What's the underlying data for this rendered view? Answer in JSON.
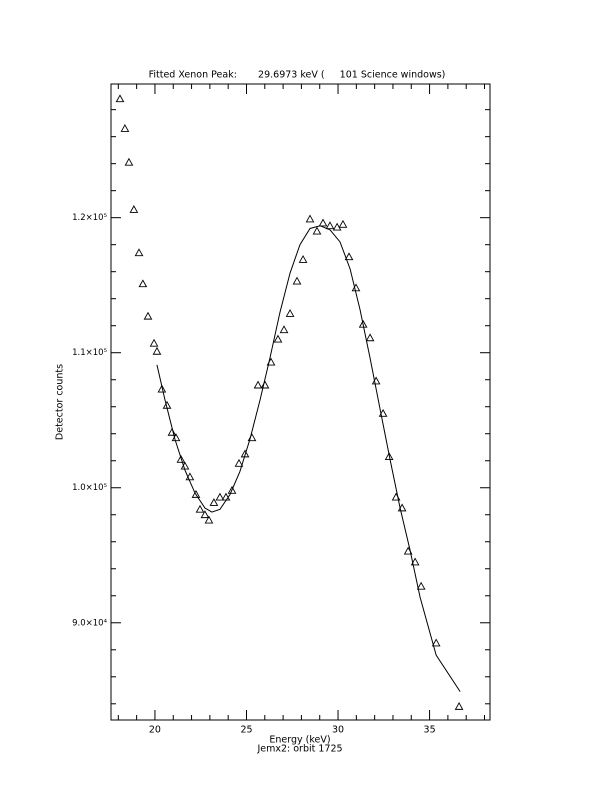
{
  "chart_data": {
    "type": "scatter",
    "title": "Fitted Xenon Peak:       29.6973 keV (     101 Science windows)",
    "x_label": "Energy (keV)",
    "x_label_2": "Jemx2: orbit 1725",
    "y_label": "Detector counts",
    "xlim": [
      17.6,
      38.3
    ],
    "ylim": [
      82800,
      129900
    ],
    "xticks": [
      20,
      25,
      30,
      35
    ],
    "xminorticks": [
      18,
      19,
      21,
      22,
      23,
      24,
      26,
      27,
      28,
      29,
      31,
      32,
      33,
      34,
      36,
      37,
      38
    ],
    "yticks": [
      {
        "value": 90000,
        "label": "9.0×10⁴"
      },
      {
        "value": 100000,
        "label": "1.0×10⁵"
      },
      {
        "value": 110000,
        "label": "1.1×10⁵"
      },
      {
        "value": 120000,
        "label": "1.2×10⁵"
      }
    ],
    "yminorticks": [
      84000,
      86000,
      88000,
      92000,
      94000,
      96000,
      98000,
      102000,
      104000,
      106000,
      108000,
      112000,
      114000,
      116000,
      118000,
      122000,
      124000,
      126000,
      128000
    ],
    "series": [
      {
        "mode": "markers",
        "color": "#000000",
        "x": [
          18.09,
          18.36,
          18.58,
          18.85,
          19.13,
          19.34,
          19.62,
          19.95,
          20.11,
          20.38,
          20.66,
          20.93,
          21.15,
          21.42,
          21.64,
          21.91,
          22.24,
          22.46,
          22.73,
          22.95,
          23.22,
          23.55,
          23.88,
          24.21,
          24.59,
          24.92,
          25.3,
          25.63,
          26.01,
          26.34,
          26.72,
          27.05,
          27.38,
          27.76,
          28.09,
          28.47,
          28.85,
          29.18,
          29.56,
          29.95,
          30.27,
          30.6,
          30.98,
          31.37,
          31.75,
          32.08,
          32.46,
          32.79,
          33.17,
          33.5,
          33.83,
          34.21,
          34.54,
          35.36,
          36.61
        ],
        "y": [
          128800,
          126600,
          124100,
          120600,
          117400,
          115100,
          112700,
          110700,
          110100,
          107300,
          106100,
          104100,
          103700,
          102100,
          101600,
          100800,
          99500,
          98400,
          98000,
          97600,
          98900,
          99300,
          99300,
          99800,
          101800,
          102500,
          103700,
          107600,
          107600,
          109300,
          111000,
          111700,
          112900,
          115300,
          116900,
          119900,
          119000,
          119600,
          119400,
          119300,
          119500,
          117100,
          114800,
          112100,
          111100,
          107900,
          105500,
          102300,
          99300,
          98500,
          95300,
          94500,
          92700,
          88500,
          83800
        ]
      },
      {
        "mode": "line",
        "color": "#000000",
        "x": [
          20.11,
          20.55,
          21.09,
          21.64,
          22.19,
          22.73,
          23.11,
          23.55,
          24.1,
          24.64,
          25.19,
          25.74,
          26.28,
          26.83,
          27.38,
          27.92,
          28.47,
          29.02,
          29.56,
          30.11,
          30.66,
          31.2,
          31.75,
          32.3,
          32.84,
          33.39,
          33.93,
          34.48,
          35.36,
          36.67
        ],
        "y": [
          109100,
          106500,
          103600,
          101300,
          99600,
          98500,
          98200,
          98400,
          99500,
          101200,
          103600,
          106500,
          109600,
          113000,
          115900,
          118000,
          119200,
          119400,
          119100,
          118200,
          116200,
          113200,
          109600,
          105800,
          102100,
          98500,
          95400,
          91900,
          87600,
          84900
        ]
      }
    ]
  }
}
